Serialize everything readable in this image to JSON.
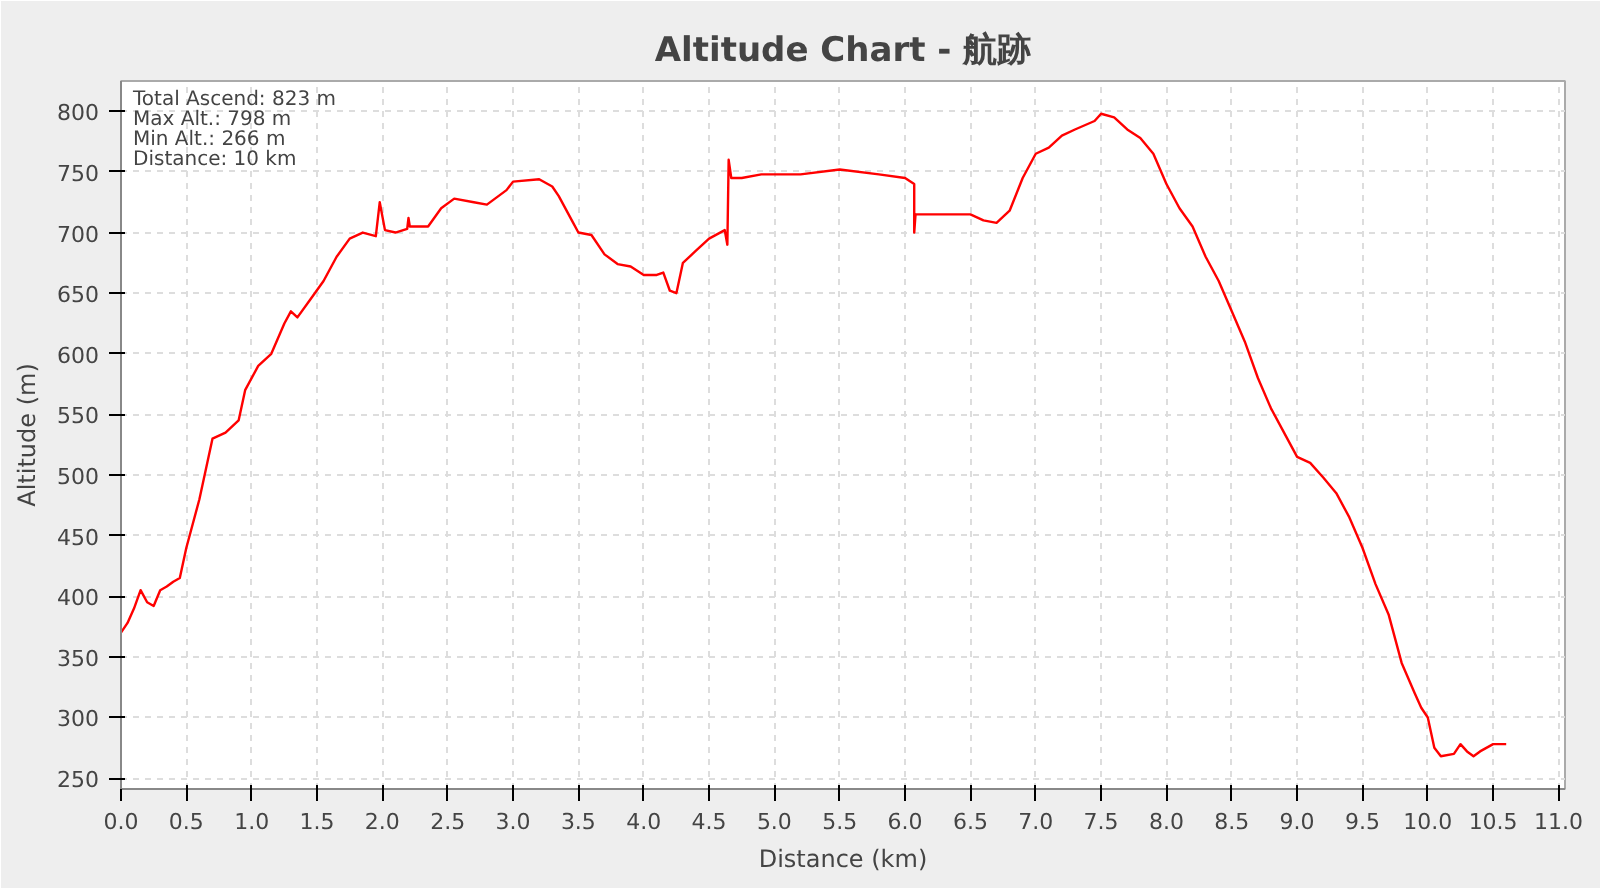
{
  "chart_data": {
    "type": "line",
    "title": "Altitude Chart - 航跡",
    "xlabel": "Distance (km)",
    "ylabel": "Altitude (m)",
    "annotations": [
      "Total Ascend: 823 m",
      "Max Alt.: 798 m",
      "Min Alt.: 266 m",
      "Distance: 10 km"
    ],
    "xlim": [
      0,
      11.05
    ],
    "ylim": [
      241,
      825
    ],
    "xticks": [
      {
        "value": 0,
        "label": "0.0"
      },
      {
        "value": 0.5,
        "label": "0.5"
      },
      {
        "value": 1,
        "label": "1.0"
      },
      {
        "value": 1.5,
        "label": "1.5"
      },
      {
        "value": 2,
        "label": "2.0"
      },
      {
        "value": 2.5,
        "label": "2.5"
      },
      {
        "value": 3,
        "label": "3.0"
      },
      {
        "value": 3.5,
        "label": "3.5"
      },
      {
        "value": 4,
        "label": "4.0"
      },
      {
        "value": 4.5,
        "label": "4.5"
      },
      {
        "value": 5,
        "label": "5.0"
      },
      {
        "value": 5.5,
        "label": "5.5"
      },
      {
        "value": 6,
        "label": "6.0"
      },
      {
        "value": 6.5,
        "label": "6.5"
      },
      {
        "value": 7,
        "label": "7.0"
      },
      {
        "value": 7.5,
        "label": "7.5"
      },
      {
        "value": 8,
        "label": "8.0"
      },
      {
        "value": 8.5,
        "label": "8.5"
      },
      {
        "value": 9,
        "label": "9.0"
      },
      {
        "value": 9.5,
        "label": "9.5"
      },
      {
        "value": 10,
        "label": "10.0"
      },
      {
        "value": 10.5,
        "label": "10.5"
      },
      {
        "value": 11,
        "label": "11.0"
      }
    ],
    "yticks": [
      250,
      300,
      350,
      400,
      450,
      500,
      550,
      600,
      650,
      700,
      750,
      800
    ],
    "grid": true,
    "series": [
      {
        "color": "#ff0000",
        "x": [
          0.0,
          0.05,
          0.1,
          0.15,
          0.2,
          0.25,
          0.3,
          0.35,
          0.4,
          0.45,
          0.5,
          0.6,
          0.7,
          0.8,
          0.9,
          0.95,
          1.05,
          1.15,
          1.25,
          1.3,
          1.35,
          1.45,
          1.55,
          1.65,
          1.75,
          1.85,
          1.95,
          1.98,
          2.02,
          2.1,
          2.19,
          2.2,
          2.21,
          2.35,
          2.45,
          2.55,
          2.7,
          2.8,
          2.95,
          3.0,
          3.2,
          3.3,
          3.35,
          3.45,
          3.5,
          3.6,
          3.7,
          3.8,
          3.9,
          4.0,
          4.1,
          4.15,
          4.2,
          4.25,
          4.3,
          4.4,
          4.5,
          4.62,
          4.64,
          4.65,
          4.67,
          4.75,
          4.9,
          5.2,
          5.5,
          5.8,
          6.0,
          6.07,
          6.07,
          6.08,
          6.5,
          6.6,
          6.7,
          6.8,
          6.9,
          7.0,
          7.1,
          7.2,
          7.3,
          7.45,
          7.5,
          7.6,
          7.7,
          7.8,
          7.9,
          8.0,
          8.1,
          8.2,
          8.3,
          8.4,
          8.5,
          8.6,
          8.7,
          8.8,
          8.9,
          9.0,
          9.1,
          9.2,
          9.3,
          9.4,
          9.5,
          9.6,
          9.7,
          9.8,
          9.9,
          9.95,
          10.0,
          10.05,
          10.1,
          10.2,
          10.25,
          10.3,
          10.35,
          10.4,
          10.5,
          10.6
        ],
        "values": [
          370,
          378,
          390,
          405,
          395,
          392,
          405,
          408,
          412,
          415,
          440,
          480,
          530,
          535,
          545,
          570,
          590,
          600,
          625,
          635,
          630,
          645,
          660,
          680,
          695,
          700,
          697,
          725,
          702,
          700,
          703,
          712,
          705,
          705,
          720,
          728,
          725,
          723,
          735,
          742,
          744,
          738,
          730,
          710,
          700,
          698,
          682,
          674,
          672,
          665,
          665,
          667,
          652,
          650,
          675,
          685,
          695,
          702,
          690,
          760,
          745,
          745,
          748,
          748,
          752,
          748,
          745,
          740,
          700,
          715,
          715,
          710,
          708,
          718,
          745,
          765,
          770,
          780,
          785,
          792,
          798,
          795,
          785,
          778,
          765,
          740,
          720,
          705,
          680,
          660,
          635,
          610,
          580,
          555,
          535,
          515,
          510,
          498,
          485,
          465,
          440,
          410,
          385,
          345,
          320,
          308,
          300,
          275,
          268,
          270,
          278,
          272,
          268,
          272,
          278,
          278
        ]
      }
    ]
  }
}
